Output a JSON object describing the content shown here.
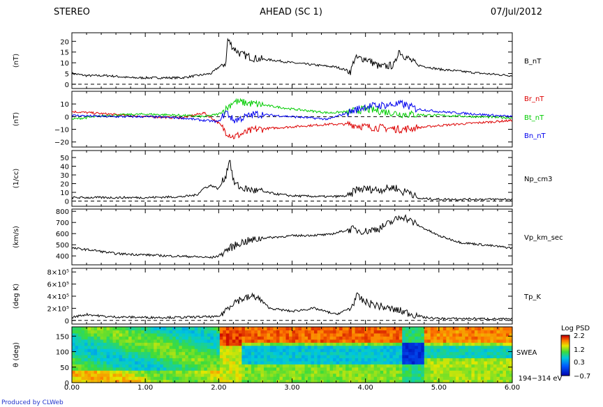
{
  "header": {
    "left": "STEREO",
    "center": "AHEAD (SC 1)",
    "right": "07/Jul/2012"
  },
  "footer": {
    "credit": "Produced by CLWeb"
  },
  "chart_data": [
    {
      "type": "line",
      "panel": "B",
      "ylabel": "(nT)",
      "ylim": [
        -2,
        24
      ],
      "yticks": [
        0,
        5,
        10,
        15,
        20
      ],
      "yticklabels": [
        "0",
        "5",
        "10",
        "15",
        "20"
      ],
      "dashed_zero": true,
      "series": [
        {
          "name": "B_nT",
          "color": "#000000",
          "x": [
            0.0,
            0.2,
            0.5,
            0.8,
            1.0,
            1.2,
            1.5,
            1.7,
            1.9,
            2.0,
            2.1,
            2.12,
            2.2,
            2.3,
            2.5,
            2.8,
            3.0,
            3.3,
            3.6,
            3.8,
            3.85,
            4.0,
            4.2,
            4.4,
            4.45,
            4.5,
            4.7,
            5.0,
            5.3,
            5.6,
            6.0
          ],
          "y": [
            5,
            4,
            4,
            3,
            3,
            3,
            3,
            4,
            5,
            8,
            10,
            21,
            17,
            14,
            12,
            11,
            10,
            9,
            8,
            6,
            12,
            12,
            8,
            9,
            16,
            14,
            9,
            7,
            6,
            5,
            4
          ]
        }
      ]
    },
    {
      "type": "line",
      "panel": "B components",
      "ylabel": "(nT)",
      "ylim": [
        -24,
        20
      ],
      "yticks": [
        -20,
        -10,
        0,
        10
      ],
      "yticklabels": [
        "−20",
        "−10",
        "0",
        "10"
      ],
      "dashed_zero": true,
      "series": [
        {
          "name": "Br_nT",
          "color": "#dd0000",
          "x": [
            0.0,
            0.5,
            1.0,
            1.5,
            1.8,
            2.0,
            2.1,
            2.2,
            2.5,
            3.0,
            3.5,
            3.8,
            4.0,
            4.5,
            5.0,
            5.5,
            6.0
          ],
          "y": [
            4,
            2,
            0,
            -1,
            3,
            -5,
            -12,
            -16,
            -10,
            -8,
            -6,
            -6,
            -8,
            -10,
            -7,
            -5,
            -3
          ]
        },
        {
          "name": "Bt_nT",
          "color": "#00cc00",
          "x": [
            0.0,
            0.5,
            1.0,
            1.5,
            1.8,
            2.0,
            2.1,
            2.2,
            2.5,
            3.0,
            3.5,
            3.8,
            4.0,
            4.5,
            5.0,
            5.5,
            6.0
          ],
          "y": [
            -2,
            1,
            2,
            1,
            0,
            2,
            6,
            12,
            10,
            6,
            3,
            4,
            6,
            2,
            1,
            0,
            -1
          ]
        },
        {
          "name": "Bn_nT",
          "color": "#0000ee",
          "x": [
            0.0,
            0.5,
            1.0,
            1.5,
            1.8,
            2.0,
            2.1,
            2.2,
            2.5,
            3.0,
            3.5,
            3.8,
            4.0,
            4.5,
            4.7,
            5.0,
            5.5,
            6.0
          ],
          "y": [
            1,
            0,
            0,
            -1,
            -3,
            -4,
            4,
            -3,
            2,
            0,
            -2,
            4,
            8,
            10,
            6,
            4,
            2,
            0
          ]
        }
      ]
    },
    {
      "type": "line",
      "panel": "Np",
      "ylabel": "(1/cc)",
      "ylim": [
        -6,
        58
      ],
      "yticks": [
        0,
        10,
        20,
        30,
        40,
        50
      ],
      "yticklabels": [
        "0",
        "10",
        "20",
        "30",
        "40",
        "50"
      ],
      "dashed_zero": true,
      "series": [
        {
          "name": "Np_cm3",
          "color": "#000000",
          "x": [
            0.0,
            0.5,
            1.0,
            1.5,
            1.7,
            1.8,
            1.9,
            2.0,
            2.1,
            2.15,
            2.2,
            2.3,
            2.5,
            2.8,
            3.0,
            3.5,
            3.8,
            3.85,
            4.0,
            4.2,
            4.4,
            4.5,
            4.6,
            4.7,
            5.0,
            5.5,
            6.0
          ],
          "y": [
            4,
            4,
            4,
            5,
            7,
            15,
            18,
            14,
            30,
            50,
            22,
            15,
            12,
            8,
            6,
            5,
            6,
            13,
            14,
            13,
            16,
            10,
            12,
            3,
            2,
            2,
            2
          ]
        }
      ]
    },
    {
      "type": "line",
      "panel": "Vp",
      "ylabel": "(km/s)",
      "ylim": [
        320,
        820
      ],
      "yticks": [
        400,
        500,
        600,
        700,
        800
      ],
      "yticklabels": [
        "400",
        "500",
        "600",
        "700",
        "800"
      ],
      "dashed_zero": false,
      "series": [
        {
          "name": "Vp_km_sec",
          "color": "#000000",
          "x": [
            0.0,
            0.3,
            0.6,
            1.0,
            1.3,
            1.6,
            1.9,
            2.0,
            2.1,
            2.3,
            2.6,
            3.0,
            3.5,
            3.8,
            4.0,
            4.2,
            4.4,
            4.5,
            4.6,
            4.7,
            5.0,
            5.3,
            5.6,
            6.0
          ],
          "y": [
            470,
            450,
            420,
            410,
            400,
            395,
            385,
            400,
            450,
            520,
            560,
            580,
            590,
            640,
            620,
            650,
            720,
            760,
            720,
            680,
            580,
            520,
            500,
            470
          ]
        }
      ]
    },
    {
      "type": "line",
      "panel": "Tp",
      "ylabel": "(deg K)",
      "ylim": [
        -60000,
        860000
      ],
      "yticks": [
        0,
        200000,
        400000,
        600000,
        800000
      ],
      "yticklabels": [
        "0",
        "2×10⁵",
        "4×10⁵",
        "6×10⁵",
        "8×10⁵"
      ],
      "dashed_zero": true,
      "series": [
        {
          "name": "Tp_K",
          "color": "#000000",
          "x": [
            0.0,
            0.2,
            0.5,
            1.0,
            1.5,
            1.8,
            2.0,
            2.2,
            2.3,
            2.5,
            2.7,
            3.0,
            3.3,
            3.6,
            3.8,
            3.88,
            4.0,
            4.3,
            4.5,
            4.8,
            5.0,
            5.5,
            6.0
          ],
          "y": [
            50000,
            100000,
            60000,
            50000,
            50000,
            60000,
            60000,
            300000,
            350000,
            400000,
            200000,
            150000,
            200000,
            100000,
            200000,
            400000,
            300000,
            200000,
            150000,
            50000,
            30000,
            30000,
            20000
          ]
        }
      ]
    },
    {
      "type": "heatmap",
      "panel": "SWEA",
      "ylabel": "θ (deg)",
      "ylim": [
        0,
        180
      ],
      "yticks": [
        0,
        50,
        100,
        150
      ],
      "yticklabels": [
        "0",
        "50",
        "100",
        "150"
      ],
      "side_label": "SWEA",
      "energy_label": "194−314 eV",
      "colorbar": {
        "title": "Log PSD",
        "ticks": [
          2.2,
          1.2,
          0.3,
          -0.7
        ],
        "ticklabels": [
          "2.2",
          "1.2",
          "0.3",
          "−0.7"
        ],
        "range": [
          -0.7,
          2.2
        ]
      }
    }
  ],
  "xaxis": {
    "xlim": [
      0,
      6
    ],
    "ticks": [
      0,
      1,
      2,
      3,
      4,
      5,
      6
    ],
    "ticklabels": [
      "0.00",
      "1.00",
      "2.00",
      "3.00",
      "4.00",
      "5.00",
      "6.00"
    ]
  }
}
